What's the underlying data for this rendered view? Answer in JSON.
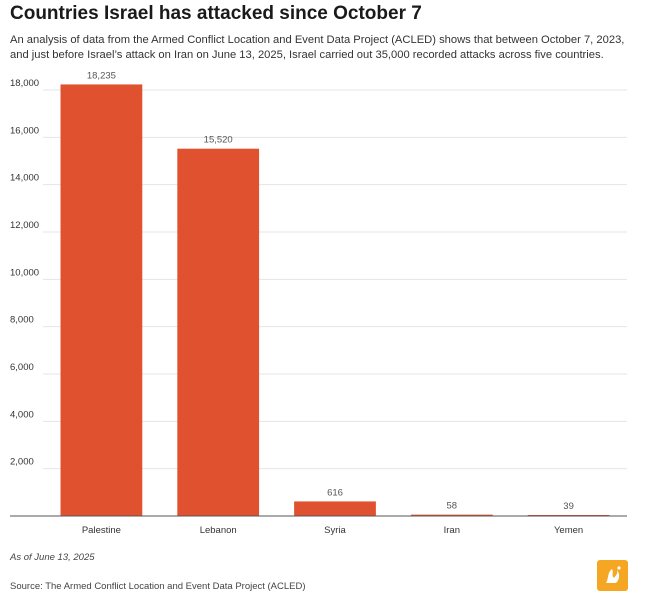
{
  "title": "Countries Israel has attacked since October 7",
  "subtitle": "An analysis of data from the Armed Conflict Location and Event Data Project (ACLED) shows that between October 7, 2023, and just before Israel’s attack on Iran on June 13, 2025, Israel carried out 35,000 recorded attacks across five countries.",
  "note": "As of June 13, 2025",
  "source": "Source: The Armed Conflict Location and Event Data Project (ACLED)",
  "colors": {
    "bar": "#e0512f",
    "grid": "#e4e4e4",
    "axis": "#555555",
    "logo": "#f5a623"
  },
  "chart_data": {
    "type": "bar",
    "title": "Countries Israel has attacked since October 7",
    "xlabel": "",
    "ylabel": "",
    "categories": [
      "Palestine",
      "Lebanon",
      "Syria",
      "Iran",
      "Yemen"
    ],
    "values": [
      18235,
      15520,
      616,
      58,
      39
    ],
    "value_labels": [
      "18,235",
      "15,520",
      "616",
      "58",
      "39"
    ],
    "ylim": [
      0,
      18000
    ],
    "yticks": [
      2000,
      4000,
      6000,
      8000,
      10000,
      12000,
      14000,
      16000,
      18000
    ],
    "ytick_labels": [
      "2,000",
      "4,000",
      "6,000",
      "8,000",
      "10,000",
      "12,000",
      "14,000",
      "16,000",
      "18,000"
    ],
    "grid": true,
    "legend": "none"
  }
}
